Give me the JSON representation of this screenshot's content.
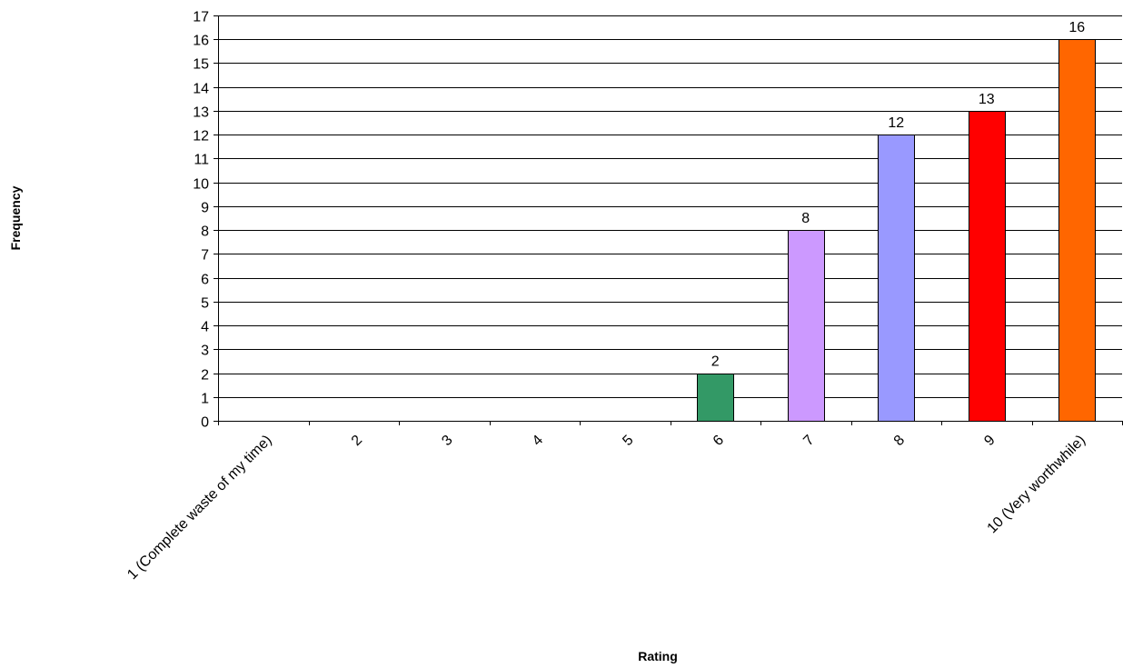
{
  "chart_data": {
    "type": "bar",
    "categories": [
      "1 (Complete waste of my time)",
      "2",
      "3",
      "4",
      "5",
      "6",
      "7",
      "8",
      "9",
      "10 (Very worthwhile)"
    ],
    "values": [
      0,
      0,
      0,
      0,
      0,
      2,
      8,
      12,
      13,
      16
    ],
    "data_labels": [
      "",
      "",
      "",
      "",
      "",
      "2",
      "8",
      "12",
      "13",
      "16"
    ],
    "colors": [
      "#339966",
      "#339966",
      "#339966",
      "#339966",
      "#339966",
      "#339966",
      "#CC99FF",
      "#9999FF",
      "#FF0000",
      "#FF6600"
    ],
    "xlabel": "Rating",
    "ylabel": "Frequency",
    "ylim": [
      0,
      17
    ],
    "ytick_step": 1,
    "grid": true,
    "legend": "none"
  }
}
